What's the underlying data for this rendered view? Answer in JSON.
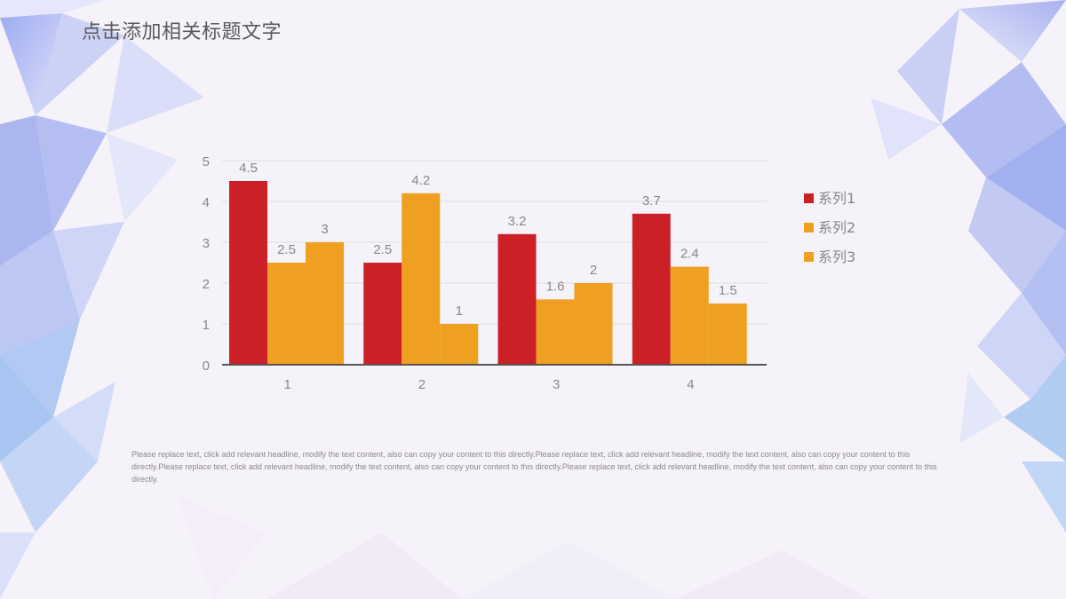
{
  "slide": {
    "title": "点击添加相关标题文字",
    "body_text": "Please replace text, click add relevant headline, modify the text content, also can copy your content to this directly.Please replace text, click add relevant headline, modify the text content, also can copy your content to this directly.Please replace text, click add relevant headline, modify the text content, also can copy your content to this directly.Please replace text, click add relevant headline, modify the text content, also can copy your content to this directly."
  },
  "colors": {
    "series1": "#cc2027",
    "series2": "#f0a020",
    "series3": "#f0a020",
    "axis": "#555555",
    "grid": "#dddddd",
    "label": "#888888"
  },
  "chart_data": {
    "type": "bar",
    "categories": [
      "1",
      "2",
      "3",
      "4"
    ],
    "series": [
      {
        "name": "系列1",
        "values": [
          4.5,
          2.5,
          3.2,
          3.7
        ]
      },
      {
        "name": "系列2",
        "values": [
          2.5,
          4.2,
          1.6,
          2.4
        ]
      },
      {
        "name": "系列3",
        "values": [
          3,
          1,
          2,
          1.5
        ]
      }
    ],
    "data_labels": [
      [
        "4.5",
        "2.5",
        "3.2",
        "3.7"
      ],
      [
        "2.5",
        "4.2",
        "1.6",
        "2.4"
      ],
      [
        "3",
        "1",
        "2",
        "1.5"
      ]
    ],
    "ylim": [
      0,
      5
    ],
    "yticks": [
      "0",
      "1",
      "2",
      "3",
      "4",
      "5"
    ],
    "grid": true,
    "legend": "right"
  }
}
